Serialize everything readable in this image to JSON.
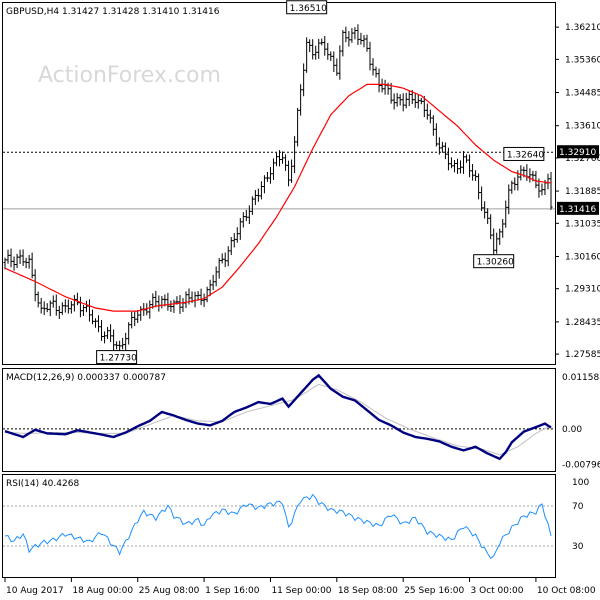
{
  "watermark": "ActionForex.com",
  "chart_data": {
    "type": "candlestick",
    "symbol_header": "GBPUSD,H4  1.31427 1.31428 1.31410 1.31416",
    "price_ticks": [
      "1.36210",
      "1.35360",
      "1.34485",
      "1.33610",
      "1.32760",
      "1.31885",
      "1.31035",
      "1.30160",
      "1.29310",
      "1.28435",
      "1.27585"
    ],
    "price_tick_values": [
      1.3621,
      1.3536,
      1.34485,
      1.3361,
      1.3276,
      1.31885,
      1.31035,
      1.3016,
      1.2931,
      1.28435,
      1.27585
    ],
    "ylim": [
      1.2735,
      1.3682
    ],
    "dashed_level": {
      "label": "1.32910",
      "value": 1.3291
    },
    "current_price": {
      "label": "1.31416",
      "value": 1.31416
    },
    "annotations": [
      {
        "label": "1.36510",
        "value": 1.3651,
        "bar": 100
      },
      {
        "label": "1.32640",
        "value": 1.3264,
        "bar": 172
      },
      {
        "label": "1.30260",
        "value": 1.3026,
        "bar": 162
      },
      {
        "label": "1.27730",
        "value": 1.2773,
        "bar": 37
      }
    ],
    "x_ticks": [
      "10 Aug 2017",
      "18 Aug 00:00",
      "25 Aug 08:00",
      "1 Sep 16:00",
      "11 Sep 00:00",
      "18 Sep 08:00",
      "25 Sep 16:00",
      "3 Oct 00:00",
      "10 Oct 08:00"
    ],
    "x_tick_bars": [
      0,
      22,
      44,
      66,
      88,
      110,
      132,
      154,
      176
    ],
    "bar_count": 182,
    "price_path": [
      [
        0,
        1.3
      ],
      [
        4,
        1.3015
      ],
      [
        8,
        1.2995
      ],
      [
        12,
        1.287
      ],
      [
        16,
        1.289
      ],
      [
        20,
        1.2875
      ],
      [
        24,
        1.29
      ],
      [
        28,
        1.286
      ],
      [
        32,
        1.282
      ],
      [
        36,
        1.279
      ],
      [
        38,
        1.2776
      ],
      [
        40,
        1.281
      ],
      [
        44,
        1.287
      ],
      [
        48,
        1.2885
      ],
      [
        52,
        1.2905
      ],
      [
        56,
        1.288
      ],
      [
        60,
        1.291
      ],
      [
        64,
        1.29
      ],
      [
        68,
        1.2935
      ],
      [
        72,
        1.301
      ],
      [
        76,
        1.306
      ],
      [
        80,
        1.3135
      ],
      [
        84,
        1.318
      ],
      [
        88,
        1.325
      ],
      [
        92,
        1.328
      ],
      [
        94,
        1.322
      ],
      [
        96,
        1.332
      ],
      [
        98,
        1.345
      ],
      [
        100,
        1.358
      ],
      [
        102,
        1.356
      ],
      [
        106,
        1.357
      ],
      [
        110,
        1.351
      ],
      [
        112,
        1.359
      ],
      [
        116,
        1.361
      ],
      [
        120,
        1.356
      ],
      [
        124,
        1.347
      ],
      [
        128,
        1.344
      ],
      [
        132,
        1.342
      ],
      [
        136,
        1.344
      ],
      [
        140,
        1.339
      ],
      [
        144,
        1.331
      ],
      [
        148,
        1.325
      ],
      [
        152,
        1.327
      ],
      [
        156,
        1.322
      ],
      [
        160,
        1.31
      ],
      [
        162,
        1.304
      ],
      [
        164,
        1.308
      ],
      [
        166,
        1.315
      ],
      [
        168,
        1.32
      ],
      [
        170,
        1.323
      ],
      [
        172,
        1.325
      ],
      [
        174,
        1.322
      ],
      [
        176,
        1.321
      ],
      [
        178,
        1.319
      ],
      [
        180,
        1.323
      ],
      [
        181,
        1.3142
      ]
    ],
    "ma_path": [
      [
        0,
        1.2985
      ],
      [
        10,
        1.295
      ],
      [
        20,
        1.291
      ],
      [
        30,
        1.288
      ],
      [
        36,
        1.2872
      ],
      [
        44,
        1.2872
      ],
      [
        50,
        1.2885
      ],
      [
        60,
        1.2895
      ],
      [
        66,
        1.2905
      ],
      [
        72,
        1.2935
      ],
      [
        78,
        1.299
      ],
      [
        84,
        1.305
      ],
      [
        90,
        1.312
      ],
      [
        96,
        1.32
      ],
      [
        102,
        1.33
      ],
      [
        108,
        1.339
      ],
      [
        114,
        1.344
      ],
      [
        120,
        1.347
      ],
      [
        126,
        1.347
      ],
      [
        132,
        1.346
      ],
      [
        138,
        1.344
      ],
      [
        144,
        1.34
      ],
      [
        150,
        1.336
      ],
      [
        156,
        1.331
      ],
      [
        162,
        1.327
      ],
      [
        168,
        1.324
      ],
      [
        172,
        1.323
      ],
      [
        176,
        1.3215
      ],
      [
        181,
        1.321
      ]
    ],
    "ma_color": "#ff0000",
    "price_color": "#000000",
    "macd": {
      "header": "MACD(12,26,9) 0.000337 0.000787",
      "ticks": [
        "0.011588",
        "0.00",
        "-0.007961"
      ],
      "tick_values": [
        0.011588,
        0.0,
        -0.007961
      ],
      "ylim": [
        -0.0092,
        0.0132
      ],
      "main_color": "#000080",
      "signal_color": "#c0c0c0",
      "main": [
        [
          0,
          -0.0005
        ],
        [
          6,
          -0.0018
        ],
        [
          10,
          -0.0002
        ],
        [
          14,
          -0.001
        ],
        [
          20,
          -0.0012
        ],
        [
          24,
          -0.0003
        ],
        [
          30,
          -0.001
        ],
        [
          36,
          -0.0018
        ],
        [
          40,
          -0.0008
        ],
        [
          44,
          0.0006
        ],
        [
          48,
          0.0018
        ],
        [
          52,
          0.0038
        ],
        [
          56,
          0.003
        ],
        [
          60,
          0.002
        ],
        [
          64,
          0.0012
        ],
        [
          68,
          0.0008
        ],
        [
          72,
          0.0018
        ],
        [
          76,
          0.0038
        ],
        [
          80,
          0.0048
        ],
        [
          84,
          0.006
        ],
        [
          88,
          0.0056
        ],
        [
          92,
          0.0068
        ],
        [
          94,
          0.005
        ],
        [
          98,
          0.008
        ],
        [
          102,
          0.011
        ],
        [
          104,
          0.012
        ],
        [
          108,
          0.009
        ],
        [
          112,
          0.0072
        ],
        [
          116,
          0.0064
        ],
        [
          120,
          0.0042
        ],
        [
          124,
          0.002
        ],
        [
          128,
          0.0008
        ],
        [
          132,
          -0.0008
        ],
        [
          136,
          -0.0018
        ],
        [
          140,
          -0.0022
        ],
        [
          144,
          -0.0028
        ],
        [
          148,
          -0.004
        ],
        [
          152,
          -0.0048
        ],
        [
          156,
          -0.004
        ],
        [
          160,
          -0.0055
        ],
        [
          164,
          -0.0067
        ],
        [
          166,
          -0.0052
        ],
        [
          168,
          -0.003
        ],
        [
          172,
          -0.0006
        ],
        [
          176,
          0.0004
        ],
        [
          179,
          0.0012
        ],
        [
          181,
          0.0003
        ]
      ],
      "signal": [
        [
          0,
          -0.0008
        ],
        [
          8,
          -0.001
        ],
        [
          16,
          -0.0008
        ],
        [
          24,
          -0.0008
        ],
        [
          32,
          -0.001
        ],
        [
          40,
          -0.001
        ],
        [
          48,
          0.001
        ],
        [
          56,
          0.003
        ],
        [
          64,
          0.0018
        ],
        [
          72,
          0.0016
        ],
        [
          80,
          0.0038
        ],
        [
          88,
          0.0052
        ],
        [
          96,
          0.0066
        ],
        [
          104,
          0.01
        ],
        [
          110,
          0.0088
        ],
        [
          118,
          0.006
        ],
        [
          126,
          0.0025
        ],
        [
          134,
          0.0
        ],
        [
          142,
          -0.002
        ],
        [
          150,
          -0.0038
        ],
        [
          158,
          -0.0045
        ],
        [
          164,
          -0.0058
        ],
        [
          170,
          -0.004
        ],
        [
          176,
          -0.001
        ],
        [
          181,
          0.0008
        ]
      ]
    },
    "rsi": {
      "header": "RSI(14) 40.4268",
      "ticks": [
        "100",
        "70",
        "30",
        "0"
      ],
      "tick_values": [
        100,
        70,
        30,
        0
      ],
      "levels": [
        70,
        30
      ],
      "color": "#1e90ff",
      "values": [
        [
          0,
          40
        ],
        [
          3,
          35
        ],
        [
          6,
          42
        ],
        [
          8,
          26
        ],
        [
          12,
          33
        ],
        [
          16,
          36
        ],
        [
          20,
          42
        ],
        [
          24,
          38
        ],
        [
          28,
          34
        ],
        [
          32,
          44
        ],
        [
          36,
          30
        ],
        [
          38,
          24
        ],
        [
          40,
          34
        ],
        [
          44,
          56
        ],
        [
          46,
          64
        ],
        [
          50,
          58
        ],
        [
          54,
          70
        ],
        [
          56,
          60
        ],
        [
          60,
          52
        ],
        [
          64,
          56
        ],
        [
          66,
          50
        ],
        [
          68,
          60
        ],
        [
          72,
          66
        ],
        [
          76,
          62
        ],
        [
          80,
          72
        ],
        [
          84,
          68
        ],
        [
          88,
          72
        ],
        [
          92,
          74
        ],
        [
          94,
          48
        ],
        [
          98,
          76
        ],
        [
          102,
          80
        ],
        [
          104,
          74
        ],
        [
          108,
          66
        ],
        [
          112,
          64
        ],
        [
          116,
          58
        ],
        [
          120,
          54
        ],
        [
          124,
          50
        ],
        [
          128,
          62
        ],
        [
          132,
          52
        ],
        [
          136,
          58
        ],
        [
          140,
          44
        ],
        [
          144,
          40
        ],
        [
          148,
          36
        ],
        [
          152,
          50
        ],
        [
          156,
          40
        ],
        [
          160,
          22
        ],
        [
          162,
          18
        ],
        [
          164,
          34
        ],
        [
          168,
          48
        ],
        [
          172,
          60
        ],
        [
          176,
          64
        ],
        [
          178,
          72
        ],
        [
          181,
          40
        ]
      ]
    }
  }
}
